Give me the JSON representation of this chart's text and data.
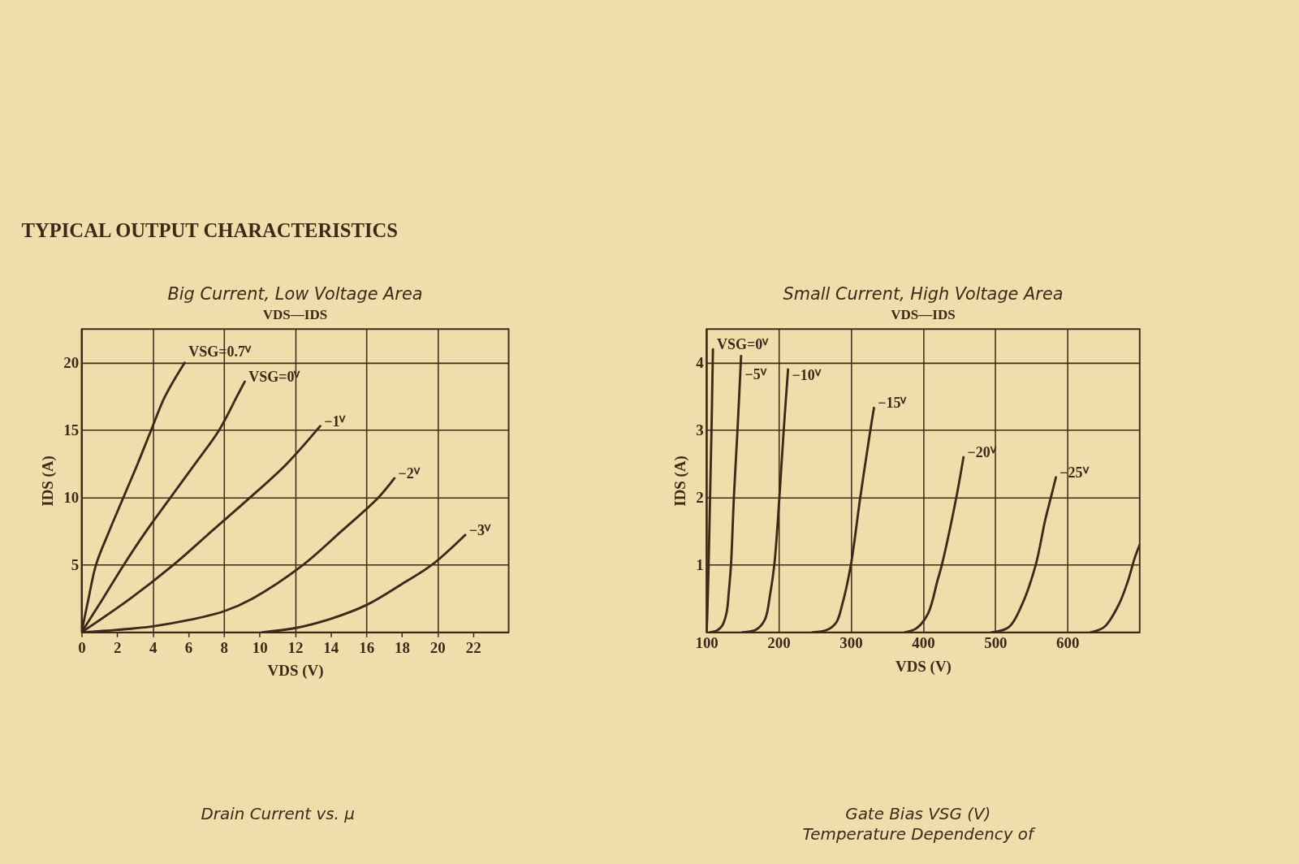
{
  "chart_data": [
    {
      "type": "other",
      "title": "TYPICAL OUTPUT CHARACTERISTICS"
    },
    {
      "type": "line",
      "title": "Big Current, Low Voltage Area",
      "subtitle": "VDS—IDS",
      "xlabel": "VDS (V)",
      "ylabel": "IDS (A)",
      "xlim": [
        0,
        24
      ],
      "ylim": [
        0,
        22.5
      ],
      "xticks": [
        0,
        2,
        4,
        6,
        8,
        10,
        12,
        14,
        16,
        18,
        20,
        22
      ],
      "yticks": [
        5,
        10,
        15,
        20
      ],
      "grid": true,
      "series": [
        {
          "name": "VSG=0.7ⱽ",
          "color": "#3b2a18",
          "x": [
            0,
            0.39,
            0.81,
            1.55,
            2.35,
            3.15,
            3.91,
            4.69,
            5.79
          ],
          "values": [
            0,
            2.5,
            5,
            7.5,
            10,
            12.5,
            15,
            17.5,
            20
          ]
        },
        {
          "name": "VSG=0ⱽ",
          "color": "#3b2a18",
          "x": [
            0,
            1.2,
            2.37,
            3.63,
            5.0,
            6.38,
            7.73,
            8.73,
            9.17
          ],
          "values": [
            0,
            2.5,
            5,
            7.5,
            10,
            12.5,
            15,
            17.5,
            18.6
          ]
        },
        {
          "name": "−1ⱽ",
          "color": "#3b2a18",
          "x": [
            0,
            2.74,
            5.16,
            7.31,
            9.47,
            11.53,
            13.41
          ],
          "values": [
            0,
            2.5,
            5,
            7.5,
            10,
            12.5,
            15.3
          ]
        },
        {
          "name": "−2ⱽ",
          "color": "#3b2a18",
          "x": [
            0,
            2,
            4,
            6,
            8,
            9.6,
            12.45,
            14.6,
            16.68,
            17.58
          ],
          "values": [
            0,
            0.18,
            0.44,
            0.9,
            1.56,
            2.5,
            5,
            7.5,
            10,
            11.43
          ]
        },
        {
          "name": "−3ⱽ",
          "color": "#3b2a18",
          "x": [
            10.15,
            12,
            14,
            16,
            18,
            19.68,
            21.56
          ],
          "values": [
            0,
            0.31,
            1.0,
            2.02,
            3.58,
            5,
            7.23
          ]
        }
      ]
    },
    {
      "type": "line",
      "title": "Small Current, High Voltage Area",
      "subtitle": "VDS—IDS",
      "xlabel": "VDS (V)",
      "ylabel": "IDS (A)",
      "xlim": [
        100,
        700
      ],
      "ylim": [
        0,
        4.5
      ],
      "xticks": [
        100,
        200,
        300,
        400,
        500,
        600
      ],
      "yticks": [
        1,
        2,
        3,
        4
      ],
      "grid": true,
      "series": [
        {
          "name": "VSG=0ⱽ",
          "color": "#3b2a18",
          "x": [
            100,
            101,
            103,
            105,
            107,
            109
          ],
          "values": [
            0,
            0.2,
            1,
            2,
            3,
            4.2
          ]
        },
        {
          "name": "−5ⱽ",
          "color": "#3b2a18",
          "x": [
            105,
            115,
            122,
            128,
            131,
            134,
            138,
            143,
            148
          ],
          "values": [
            0,
            0.03,
            0.1,
            0.3,
            0.6,
            1,
            2,
            3,
            4.1
          ]
        },
        {
          "name": "−10ⱽ",
          "color": "#3b2a18",
          "x": [
            150,
            169,
            181,
            188,
            194,
            201,
            207,
            213
          ],
          "values": [
            0,
            0.04,
            0.19,
            0.55,
            1,
            2,
            3,
            3.9
          ]
        },
        {
          "name": "−15ⱽ",
          "color": "#3b2a18",
          "x": [
            247,
            268,
            280,
            288,
            300,
            313,
            327,
            332
          ],
          "values": [
            0,
            0.04,
            0.15,
            0.41,
            1,
            2,
            3,
            3.33
          ]
        },
        {
          "name": "−20ⱽ",
          "color": "#3b2a18",
          "x": [
            375,
            391,
            407,
            420,
            426,
            446,
            456
          ],
          "values": [
            0,
            0.06,
            0.28,
            0.77,
            1,
            2,
            2.6
          ]
        },
        {
          "name": "−25ⱽ",
          "color": "#3b2a18",
          "x": [
            495,
            519,
            537,
            556,
            569,
            577,
            584
          ],
          "values": [
            0,
            0.08,
            0.41,
            1,
            1.66,
            2,
            2.3
          ]
        },
        {
          "color": "#3b2a18",
          "x": [
            632,
            651,
            671,
            684,
            693,
            700
          ],
          "values": [
            0,
            0.08,
            0.41,
            0.77,
            1.1,
            1.3
          ]
        }
      ]
    },
    {
      "type": "other",
      "title": "Drain Current vs. μ"
    },
    {
      "type": "other",
      "title": "Gate Bias VSG (V)",
      "subtitle": "Temperature Dependency of"
    }
  ]
}
